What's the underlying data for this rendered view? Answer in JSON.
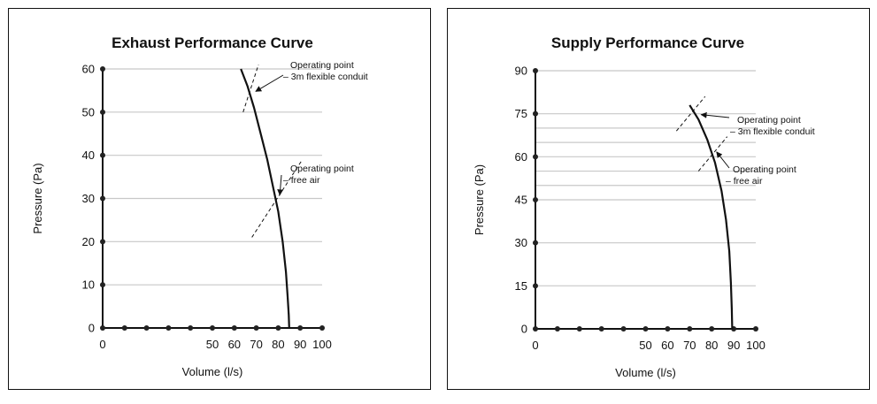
{
  "chart_data": [
    {
      "type": "line",
      "title": "Exhaust Performance Curve",
      "xlabel": "Volume (l/s)",
      "ylabel": "Pressure (Pa)",
      "xlim": [
        0,
        100
      ],
      "ylim": [
        0,
        60
      ],
      "x_tick_positions": [
        0,
        10,
        20,
        30,
        40,
        50,
        60,
        70,
        80,
        90,
        100
      ],
      "x_tick_labels": [
        "0",
        "",
        "",
        "",
        "",
        "50",
        "60",
        "70",
        "80",
        "90",
        "100"
      ],
      "y_ticks": [
        0,
        10,
        20,
        30,
        40,
        50,
        60
      ],
      "y_tick_labels": [
        "0",
        "10",
        "20",
        "30",
        "40",
        "50",
        "60"
      ],
      "grid_y": [
        10,
        20,
        30,
        40,
        50,
        60
      ],
      "series": [
        {
          "x": [
            63,
            66,
            69,
            72,
            75,
            77.5,
            80,
            82,
            83.5,
            84.3,
            84.8,
            85
          ],
          "y": [
            60,
            56,
            51,
            45,
            39,
            33,
            27,
            20,
            13,
            7,
            3,
            0
          ]
        }
      ],
      "system_lines": [
        {
          "x": [
            64,
            71
          ],
          "y": [
            50,
            61
          ]
        },
        {
          "x": [
            68,
            91
          ],
          "y": [
            21,
            39
          ]
        }
      ],
      "annotations": [
        {
          "text_lines": [
            "Operating point",
            "– 3m flexible conduit"
          ],
          "point": [
            68.5,
            55
          ]
        },
        {
          "text_lines": [
            "Operating point",
            "– free air"
          ],
          "point": [
            79.5,
            31
          ]
        }
      ]
    },
    {
      "type": "line",
      "title": "Supply Performance Curve",
      "xlabel": "Volume (l/s)",
      "ylabel": "Pressure (Pa)",
      "xlim": [
        0,
        100
      ],
      "ylim": [
        0,
        90
      ],
      "x_tick_positions": [
        0,
        10,
        20,
        30,
        40,
        50,
        60,
        70,
        80,
        90,
        100
      ],
      "x_tick_labels": [
        "0",
        "",
        "",
        "",
        "",
        "50",
        "60",
        "70",
        "80",
        "90",
        "100"
      ],
      "y_ticks": [
        0,
        15,
        30,
        45,
        60,
        75,
        90
      ],
      "y_tick_labels": [
        "0",
        "15",
        "30",
        "45",
        "60",
        "75",
        "90"
      ],
      "grid_y": [
        15,
        30,
        45,
        50,
        55,
        60,
        65,
        70,
        75,
        90
      ],
      "series": [
        {
          "x": [
            70,
            74,
            78,
            81.5,
            84.5,
            86.5,
            88,
            88.7,
            89.1,
            89.3
          ],
          "y": [
            78,
            73,
            66,
            58,
            48,
            38,
            27,
            16,
            7,
            0
          ]
        }
      ],
      "system_lines": [
        {
          "x": [
            64,
            77
          ],
          "y": [
            69,
            81
          ]
        },
        {
          "x": [
            74,
            87
          ],
          "y": [
            55,
            67
          ]
        }
      ],
      "annotations": [
        {
          "text_lines": [
            "Operating point",
            "– 3m flexible conduit"
          ],
          "point": [
            74,
            75
          ]
        },
        {
          "text_lines": [
            "Operating point",
            "– free air"
          ],
          "point": [
            81,
            62
          ]
        }
      ]
    }
  ]
}
